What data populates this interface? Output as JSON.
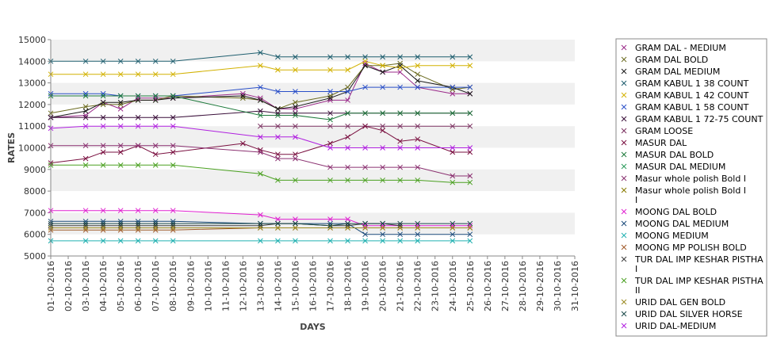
{
  "chart_data": {
    "type": "line",
    "xlabel": "DAYS",
    "ylabel": "RATES",
    "ylim": [
      5000,
      15000
    ],
    "yticks": [
      5000,
      6000,
      7000,
      8000,
      9000,
      10000,
      11000,
      12000,
      13000,
      14000,
      15000
    ],
    "x": [
      "01-10-2016",
      "02-10-2016",
      "03-10-2016",
      "04-10-2016",
      "05-10-2016",
      "06-10-2016",
      "07-10-2016",
      "08-10-2016",
      "09-10-2016",
      "10-10-2016",
      "11-10-2016",
      "12-10-2016",
      "13-10-2016",
      "14-10-2016",
      "15-10-2016",
      "16-10-2016",
      "17-10-2016",
      "18-10-2016",
      "19-10-2016",
      "20-10-2016",
      "21-10-2016",
      "22-10-2016",
      "23-10-2016",
      "24-10-2016",
      "25-10-2016",
      "26-10-2016",
      "27-10-2016",
      "28-10-2016",
      "29-10-2016",
      "30-10-2016",
      "31-10-2016"
    ],
    "grid": "alternating horizontal bands",
    "legend_position": "right",
    "series": [
      {
        "name": "GRAM DAL - MEDIUM",
        "color": "#9b2a8a",
        "values": [
          11400,
          null,
          11500,
          12100,
          11800,
          12300,
          12300,
          12300,
          null,
          null,
          null,
          12500,
          12300,
          11800,
          11800,
          null,
          12200,
          12200,
          13900,
          13500,
          13500,
          12800,
          null,
          12500,
          12500,
          null,
          null,
          null,
          null,
          null,
          null
        ]
      },
      {
        "name": "GRAM DAL BOLD",
        "color": "#6b6b20",
        "values": [
          11600,
          null,
          11900,
          12000,
          12000,
          12200,
          12200,
          12400,
          null,
          null,
          null,
          12300,
          12200,
          11800,
          12100,
          null,
          12400,
          12800,
          13800,
          13800,
          13900,
          13400,
          null,
          12700,
          12800,
          null,
          null,
          null,
          null,
          null,
          null
        ]
      },
      {
        "name": "GRAM DAL MEDIUM",
        "color": "#1a1a1a",
        "values": [
          11400,
          null,
          11700,
          12100,
          12100,
          12200,
          12200,
          12300,
          null,
          null,
          null,
          12400,
          12200,
          11800,
          11900,
          null,
          12300,
          12600,
          13800,
          13500,
          13800,
          13100,
          null,
          12800,
          12500,
          null,
          null,
          null,
          null,
          null,
          null
        ]
      },
      {
        "name": "GRAM KABUL 1 38 COUNT",
        "color": "#1e5e6e",
        "values": [
          14000,
          null,
          14000,
          14000,
          14000,
          14000,
          14000,
          14000,
          null,
          null,
          null,
          null,
          14400,
          14200,
          14200,
          null,
          14200,
          14200,
          14200,
          14200,
          14200,
          14200,
          null,
          14200,
          14200,
          null,
          null,
          null,
          null,
          null,
          null
        ]
      },
      {
        "name": "GRAM KABUL 1 42 COUNT",
        "color": "#d2b100",
        "values": [
          13400,
          null,
          13400,
          13400,
          13400,
          13400,
          13400,
          13400,
          null,
          null,
          null,
          null,
          13800,
          13600,
          13600,
          null,
          13600,
          13600,
          14000,
          13800,
          13700,
          13800,
          null,
          13800,
          13800,
          null,
          null,
          null,
          null,
          null,
          null
        ]
      },
      {
        "name": "GRAM KABUL 1 58 COUNT",
        "color": "#2a4fc8",
        "values": [
          12500,
          null,
          12500,
          12500,
          12400,
          12400,
          12400,
          12400,
          null,
          null,
          null,
          null,
          12800,
          12600,
          12600,
          null,
          12600,
          12600,
          12800,
          12800,
          12800,
          12800,
          null,
          12800,
          12800,
          null,
          null,
          null,
          null,
          null,
          null
        ]
      },
      {
        "name": "GRAM KABUL 1 72-75 COUNT",
        "color": "#3a0f3a",
        "values": [
          11400,
          null,
          11400,
          11400,
          11400,
          11400,
          11400,
          11400,
          null,
          null,
          null,
          null,
          11700,
          11600,
          11600,
          null,
          11600,
          11600,
          11600,
          11600,
          11600,
          11600,
          null,
          11600,
          11600,
          null,
          null,
          null,
          null,
          null,
          null
        ]
      },
      {
        "name": "GRAM LOOSE",
        "color": "#7a3060",
        "values": [
          null,
          null,
          null,
          null,
          null,
          null,
          null,
          null,
          null,
          null,
          null,
          null,
          11000,
          11000,
          11000,
          null,
          11000,
          11000,
          11000,
          11000,
          11000,
          11000,
          null,
          11000,
          11000,
          null,
          null,
          null,
          null,
          null,
          null
        ]
      },
      {
        "name": "MASUR DAL",
        "color": "#7a1040",
        "values": [
          9300,
          null,
          9500,
          9800,
          9800,
          10100,
          9700,
          9800,
          null,
          null,
          null,
          10200,
          9900,
          9700,
          9700,
          null,
          10200,
          10500,
          11000,
          10800,
          10300,
          10400,
          null,
          9800,
          9800,
          null,
          null,
          null,
          null,
          null,
          null
        ]
      },
      {
        "name": "MASUR DAL BOLD",
        "color": "#1e7a3c",
        "values": [
          12400,
          null,
          12400,
          12400,
          12400,
          12400,
          12400,
          12400,
          null,
          null,
          null,
          null,
          11500,
          11500,
          11500,
          null,
          11300,
          11600,
          11600,
          11600,
          11600,
          11600,
          null,
          11600,
          11600,
          null,
          null,
          null,
          null,
          null,
          null
        ]
      },
      {
        "name": "MASUR DAL MEDIUM",
        "color": "#2a9a5a",
        "values": [
          null,
          null,
          null,
          null,
          null,
          null,
          null,
          null,
          null,
          null,
          null,
          null,
          null,
          null,
          null,
          null,
          null,
          null,
          null,
          null,
          null,
          null,
          null,
          null,
          null,
          null,
          null,
          null,
          null,
          null,
          null
        ]
      },
      {
        "name": "Masur whole polish Bold I",
        "color": "#8a3070",
        "values": [
          10100,
          null,
          10100,
          10100,
          10100,
          10100,
          10100,
          10100,
          null,
          null,
          null,
          null,
          9800,
          9500,
          9500,
          null,
          9100,
          9100,
          9100,
          9100,
          9100,
          9100,
          null,
          8700,
          8700,
          null,
          null,
          null,
          null,
          null,
          null
        ]
      },
      {
        "name": "Masur whole polish Bold I I",
        "color": "#8a7a00",
        "values": [
          null,
          null,
          null,
          null,
          null,
          null,
          null,
          null,
          null,
          null,
          null,
          null,
          null,
          null,
          null,
          null,
          null,
          null,
          null,
          null,
          null,
          null,
          null,
          null,
          null,
          null,
          null,
          null,
          null,
          null,
          null
        ]
      },
      {
        "name": "MOONG DAL BOLD",
        "color": "#e020d0",
        "values": [
          7100,
          null,
          7100,
          7100,
          7100,
          7100,
          7100,
          7100,
          null,
          null,
          null,
          null,
          6900,
          6700,
          6700,
          null,
          6700,
          6700,
          6400,
          6400,
          6400,
          6400,
          null,
          6400,
          6400,
          null,
          null,
          null,
          null,
          null,
          null
        ]
      },
      {
        "name": "MOONG DAL MEDIUM",
        "color": "#1a4a7a",
        "values": [
          6600,
          null,
          6600,
          6600,
          6600,
          6600,
          6600,
          6600,
          null,
          null,
          null,
          null,
          6500,
          6500,
          6500,
          null,
          6500,
          6500,
          6000,
          6000,
          6000,
          6000,
          null,
          6000,
          6000,
          null,
          null,
          null,
          null,
          null,
          null
        ]
      },
      {
        "name": "MOONG MEDIUM",
        "color": "#20b0b0",
        "values": [
          5700,
          null,
          5700,
          5700,
          5700,
          5700,
          5700,
          5700,
          null,
          null,
          null,
          null,
          5700,
          5700,
          5700,
          null,
          5700,
          5700,
          5700,
          5700,
          5700,
          5700,
          null,
          5700,
          5700,
          null,
          null,
          null,
          null,
          null,
          null
        ]
      },
      {
        "name": "MOONG MP POLISH BOLD",
        "color": "#a05a2a",
        "values": [
          6200,
          null,
          6200,
          6200,
          6200,
          6200,
          6200,
          6200,
          null,
          null,
          null,
          null,
          6300,
          6300,
          6300,
          null,
          6300,
          6300,
          6300,
          6300,
          6300,
          6300,
          null,
          6300,
          6300,
          null,
          null,
          null,
          null,
          null,
          null
        ]
      },
      {
        "name": "TUR DAL IMP KESHAR PISTHA I",
        "color": "#3a3a3a",
        "values": [
          6400,
          null,
          6400,
          6400,
          6400,
          6400,
          6400,
          6400,
          null,
          null,
          null,
          null,
          6400,
          6500,
          6500,
          null,
          6400,
          6400,
          6500,
          6500,
          6400,
          null,
          null,
          null,
          null,
          null,
          null,
          null,
          null,
          null,
          null
        ]
      },
      {
        "name": "TUR DAL IMP KESHAR PISTHA II",
        "color": "#4aa020",
        "values": [
          9200,
          null,
          9200,
          9200,
          9200,
          9200,
          9200,
          9200,
          null,
          null,
          null,
          null,
          8800,
          8500,
          8500,
          null,
          8500,
          8500,
          8500,
          8500,
          8500,
          8500,
          null,
          8400,
          8400,
          null,
          null,
          null,
          null,
          null,
          null
        ]
      },
      {
        "name": "URID DAL GEN BOLD",
        "color": "#9a8a20",
        "values": [
          6300,
          null,
          6300,
          6300,
          6300,
          6300,
          6300,
          6300,
          null,
          null,
          null,
          null,
          6300,
          6300,
          6300,
          null,
          6300,
          6300,
          6300,
          6300,
          6300,
          6300,
          null,
          6300,
          6300,
          null,
          null,
          null,
          null,
          null,
          null
        ]
      },
      {
        "name": "URID DAL SILVER HORSE",
        "color": "#1a4a4a",
        "values": [
          6500,
          null,
          6500,
          6500,
          6500,
          6500,
          6500,
          6500,
          null,
          null,
          null,
          null,
          6500,
          6500,
          6500,
          null,
          6400,
          6500,
          6500,
          6500,
          6500,
          6500,
          null,
          6500,
          6500,
          null,
          null,
          null,
          null,
          null,
          null
        ]
      },
      {
        "name": "URID DAL-MEDIUM",
        "color": "#b020e0",
        "values": [
          10900,
          null,
          11000,
          11000,
          11000,
          11000,
          11000,
          11000,
          null,
          null,
          null,
          null,
          10500,
          10500,
          10500,
          null,
          10000,
          10000,
          10000,
          10000,
          10000,
          10000,
          null,
          10000,
          10000,
          null,
          null,
          null,
          null,
          null,
          null
        ]
      }
    ]
  }
}
